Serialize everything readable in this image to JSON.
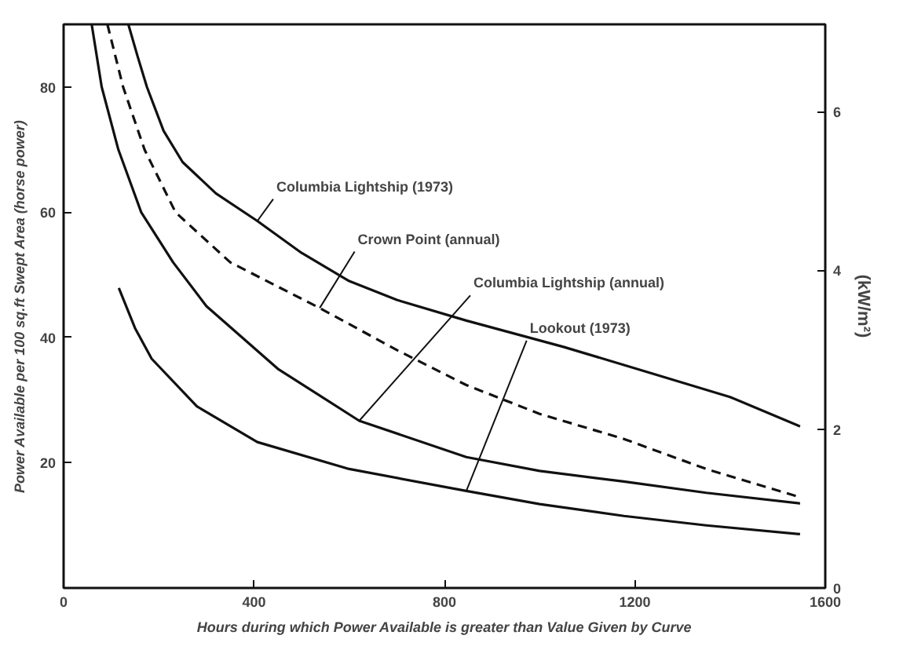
{
  "chart_data": {
    "type": "line",
    "xlabel": "Hours during which Power Available is greater than Value Given by Curve",
    "ylabel": "Power Available per 100 sq.ft Swept Area (horse power)",
    "y2label": "(kW/m²)",
    "xlim": [
      0,
      1600
    ],
    "xticks": [
      0,
      400,
      800,
      1200,
      1600
    ],
    "ylim": [
      0,
      90
    ],
    "yticks": [
      20,
      40,
      60,
      80
    ],
    "y2lim": [
      0,
      7.1
    ],
    "y2ticks": [
      0,
      2,
      4,
      6
    ],
    "grid": false,
    "marker": "none",
    "series": [
      {
        "color": "#111111",
        "line_style": "solid",
        "x": [
          136,
          155,
          175,
          210,
          250,
          320,
          407,
          500,
          600,
          700,
          846,
          1050,
          1243,
          1400,
          1547
        ],
        "values": [
          90,
          85,
          80,
          73,
          68,
          63,
          58.6,
          53.5,
          49,
          46,
          42.7,
          38.5,
          34.1,
          30.5,
          25.8
        ]
      },
      {
        "color": "#111111",
        "line_style": "dashed",
        "x": [
          92,
          125,
          170,
          235,
          350,
          538,
          700,
          846,
          1000,
          1177,
          1350,
          1547
        ],
        "values": [
          90,
          80,
          70,
          60,
          52,
          44.7,
          38,
          32.4,
          27.8,
          23.8,
          19,
          14.5
        ]
      },
      {
        "color": "#111111",
        "line_style": "solid",
        "x": [
          59,
          80,
          115,
          163,
          230,
          300,
          450,
          621,
          846,
          1000,
          1177,
          1350,
          1547
        ],
        "values": [
          90,
          80,
          70,
          60,
          52,
          45,
          35,
          26.7,
          20.9,
          18.7,
          17,
          15.2,
          13.5
        ]
      },
      {
        "color": "#111111",
        "line_style": "solid",
        "x": [
          116,
          150,
          185,
          280,
          407,
          600,
          846,
          1000,
          1177,
          1350,
          1547
        ],
        "values": [
          47.9,
          41.5,
          36.6,
          29,
          23.3,
          19,
          15.5,
          13.4,
          11.5,
          10,
          8.6
        ]
      }
    ],
    "annotations": [
      {
        "text": "Columbia Lightship (1973)",
        "x": 407,
        "y": 58.6
      },
      {
        "text": "Crown Point (annual)",
        "x": 538,
        "y": 44.7
      },
      {
        "text": "Columbia Lightship (annual)",
        "x": 621,
        "y": 26.7
      },
      {
        "text": "Lookout (1973)",
        "x": 846,
        "y": 15.5
      }
    ]
  }
}
